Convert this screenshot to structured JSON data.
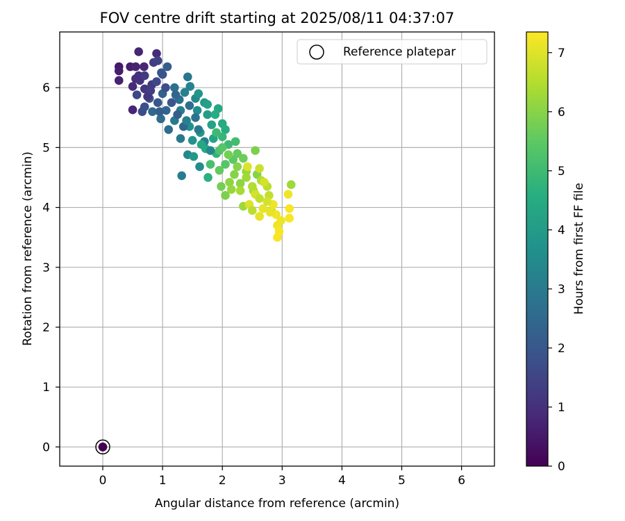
{
  "chart_data": {
    "type": "scatter",
    "title": "FOV centre drift starting at 2025/08/11 04:37:07",
    "xlabel": "Angular distance from reference (arcmin)",
    "ylabel": "Rotation from reference (arcmin)",
    "xlim": [
      -0.72,
      6.55
    ],
    "ylim": [
      -0.32,
      6.93
    ],
    "xticks": [
      0,
      1,
      2,
      3,
      4,
      5,
      6
    ],
    "yticks": [
      0,
      1,
      2,
      3,
      4,
      5,
      6
    ],
    "grid": true,
    "legend": {
      "placement": "top-right",
      "entries": [
        "Reference platepar"
      ]
    },
    "colorbar": {
      "label": "Hours from first FF file",
      "colormap": "viridis",
      "range": [
        0,
        7.35
      ],
      "ticks": [
        0,
        1,
        2,
        3,
        4,
        5,
        6,
        7
      ]
    },
    "reference_point": {
      "x": 0,
      "y": 0,
      "hours": 0
    },
    "points": [
      [
        0.0,
        0.0,
        0.05
      ],
      [
        0.27,
        6.35,
        0.5
      ],
      [
        0.27,
        6.28,
        0.6
      ],
      [
        0.27,
        6.12,
        0.7
      ],
      [
        0.46,
        6.35,
        0.6
      ],
      [
        0.55,
        6.35,
        0.7
      ],
      [
        0.6,
        6.6,
        0.8
      ],
      [
        0.69,
        6.35,
        0.8
      ],
      [
        0.9,
        6.57,
        0.9
      ],
      [
        0.5,
        5.63,
        0.8
      ],
      [
        0.5,
        6.02,
        0.9
      ],
      [
        0.55,
        6.15,
        1.0
      ],
      [
        0.62,
        6.12,
        1.1
      ],
      [
        0.7,
        5.98,
        1.2
      ],
      [
        0.82,
        6.05,
        1.3
      ],
      [
        0.85,
        6.42,
        1.4
      ],
      [
        0.92,
        6.45,
        1.5
      ],
      [
        0.57,
        5.88,
        1.6
      ],
      [
        0.66,
        5.6,
        1.7
      ],
      [
        0.7,
        5.68,
        1.8
      ],
      [
        0.78,
        5.82,
        1.9
      ],
      [
        0.92,
        5.75,
        2.0
      ],
      [
        0.98,
        6.25,
        2.1
      ],
      [
        1.08,
        6.35,
        2.2
      ],
      [
        1.0,
        5.9,
        2.3
      ],
      [
        1.06,
        5.62,
        2.4
      ],
      [
        0.83,
        5.6,
        2.5
      ],
      [
        0.97,
        5.48,
        2.6
      ],
      [
        1.2,
        6.0,
        2.7
      ],
      [
        1.28,
        5.8,
        2.8
      ],
      [
        1.42,
        6.18,
        2.9
      ],
      [
        1.2,
        5.45,
        3.0
      ],
      [
        1.3,
        5.62,
        3.1
      ],
      [
        1.37,
        5.92,
        3.2
      ],
      [
        1.46,
        6.02,
        3.3
      ],
      [
        1.32,
        4.53,
        3.1
      ],
      [
        1.42,
        4.88,
        3.4
      ],
      [
        1.55,
        5.82,
        3.5
      ],
      [
        1.58,
        5.62,
        3.6
      ],
      [
        1.62,
        4.68,
        3.6
      ],
      [
        1.45,
        5.35,
        3.7
      ],
      [
        1.5,
        5.12,
        3.8
      ],
      [
        1.63,
        5.25,
        3.9
      ],
      [
        1.7,
        5.75,
        4.0
      ],
      [
        1.75,
        5.55,
        4.1
      ],
      [
        1.82,
        5.38,
        4.2
      ],
      [
        1.85,
        5.15,
        4.3
      ],
      [
        1.93,
        5.65,
        4.4
      ],
      [
        2.0,
        5.4,
        4.5
      ],
      [
        2.05,
        5.3,
        4.6
      ],
      [
        1.72,
        4.98,
        4.5
      ],
      [
        1.76,
        4.5,
        4.7
      ],
      [
        1.9,
        4.9,
        4.8
      ],
      [
        2.0,
        5.18,
        4.9
      ],
      [
        2.1,
        5.05,
        5.0
      ],
      [
        2.22,
        5.1,
        5.1
      ],
      [
        1.8,
        4.72,
        5.2
      ],
      [
        1.95,
        4.95,
        5.3
      ],
      [
        2.05,
        4.72,
        5.4
      ],
      [
        2.18,
        4.8,
        5.5
      ],
      [
        2.25,
        4.9,
        5.6
      ],
      [
        2.35,
        4.82,
        5.7
      ],
      [
        1.98,
        4.35,
        5.8
      ],
      [
        2.05,
        4.2,
        5.9
      ],
      [
        2.2,
        4.55,
        6.0
      ],
      [
        2.3,
        4.4,
        6.1
      ],
      [
        2.4,
        4.6,
        6.2
      ],
      [
        2.55,
        4.95,
        5.9
      ],
      [
        2.58,
        4.55,
        6.0
      ],
      [
        2.35,
        4.02,
        6.3
      ],
      [
        2.52,
        4.28,
        6.4
      ],
      [
        2.65,
        4.45,
        6.5
      ],
      [
        2.75,
        4.35,
        6.6
      ],
      [
        2.78,
        4.2,
        6.7
      ],
      [
        2.82,
        3.95,
        6.8
      ],
      [
        3.15,
        4.38,
        6.3
      ],
      [
        2.42,
        4.68,
        7.0
      ],
      [
        2.45,
        4.05,
        7.0
      ],
      [
        2.62,
        3.85,
        7.1
      ],
      [
        2.68,
        3.98,
        7.1
      ],
      [
        2.85,
        4.05,
        7.2
      ],
      [
        2.9,
        3.88,
        7.2
      ],
      [
        2.92,
        3.7,
        7.2
      ],
      [
        2.92,
        3.5,
        7.3
      ],
      [
        2.95,
        3.6,
        7.3
      ],
      [
        3.1,
        4.22,
        7.2
      ],
      [
        3.12,
        3.98,
        7.3
      ],
      [
        3.12,
        3.82,
        7.3
      ],
      [
        2.98,
        3.78,
        7.2
      ],
      [
        2.55,
        4.22,
        6.9
      ],
      [
        2.7,
        4.42,
        6.9
      ],
      [
        0.8,
        5.95,
        1.4
      ],
      [
        0.9,
        6.1,
        1.6
      ],
      [
        1.05,
        6.0,
        1.8
      ],
      [
        1.15,
        5.75,
        2.0
      ],
      [
        1.25,
        5.55,
        2.2
      ],
      [
        1.35,
        5.35,
        2.4
      ],
      [
        1.45,
        5.7,
        2.6
      ],
      [
        1.55,
        5.5,
        2.8
      ],
      [
        1.6,
        5.3,
        3.0
      ],
      [
        1.7,
        5.1,
        3.2
      ],
      [
        1.8,
        4.95,
        3.4
      ],
      [
        1.6,
        5.9,
        3.8
      ],
      [
        1.75,
        5.72,
        4.2
      ],
      [
        1.88,
        5.55,
        4.6
      ],
      [
        1.9,
        5.25,
        5.0
      ],
      [
        2.0,
        5.0,
        5.4
      ],
      [
        2.1,
        4.88,
        5.8
      ],
      [
        2.25,
        4.68,
        6.0
      ],
      [
        2.4,
        4.5,
        6.3
      ],
      [
        2.5,
        4.35,
        6.5
      ],
      [
        2.62,
        4.15,
        6.7
      ],
      [
        2.75,
        4.1,
        6.9
      ],
      [
        2.8,
        3.92,
        7.1
      ],
      [
        2.3,
        4.28,
        6.4
      ],
      [
        2.12,
        4.42,
        6.1
      ],
      [
        1.52,
        4.85,
        4.0
      ],
      [
        1.95,
        4.62,
        5.6
      ],
      [
        2.15,
        4.3,
        6.2
      ],
      [
        2.5,
        3.95,
        6.6
      ],
      [
        2.62,
        4.65,
        6.8
      ],
      [
        1.1,
        5.3,
        2.6
      ],
      [
        1.3,
        5.15,
        3.0
      ],
      [
        0.95,
        5.6,
        2.2
      ],
      [
        0.75,
        5.85,
        1.2
      ],
      [
        0.6,
        6.2,
        1.0
      ],
      [
        0.7,
        6.2,
        1.3
      ],
      [
        1.0,
        6.22,
        1.9
      ],
      [
        1.22,
        5.88,
        2.4
      ],
      [
        1.4,
        5.45,
        3.2
      ],
      [
        1.65,
        5.05,
        4.4
      ]
    ]
  }
}
